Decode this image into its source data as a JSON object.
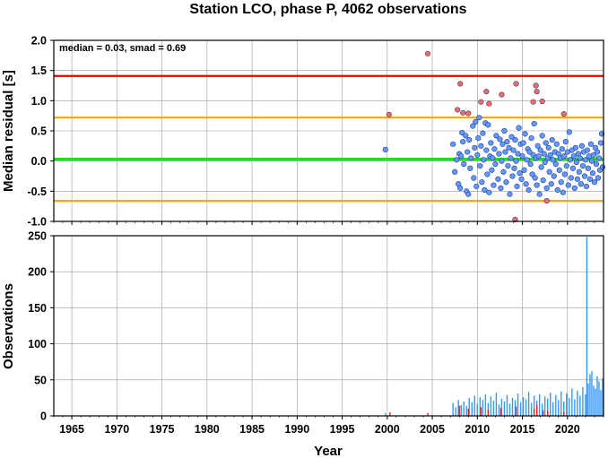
{
  "chart_data": [
    {
      "type": "scatter",
      "title": "Station LCO, phase P, 4062 observations",
      "ylabel": "Median residual [s]",
      "annotation": "median = 0.03, smad = 0.69",
      "xlim": [
        1963,
        2024
      ],
      "ylim": [
        -1.0,
        2.0
      ],
      "yticks": [
        "2.0",
        "1.5",
        "1.0",
        "0.5",
        "0.0",
        "-0.5",
        "-1.0"
      ],
      "reference_lines": [
        {
          "name": "median",
          "value": 0.03,
          "color": "#22dd22"
        },
        {
          "name": "median + smad",
          "value": 0.72,
          "color": "#ffa500"
        },
        {
          "name": "median - smad",
          "value": -0.66,
          "color": "#ffa500"
        },
        {
          "name": "median + 2 smad",
          "value": 1.41,
          "color": "#e00000"
        }
      ],
      "series": [
        {
          "color": "#6699ff",
          "points": [
            [
              1999.8,
              0.19
            ],
            [
              2007.3,
              0.28
            ],
            [
              2007.5,
              -0.18
            ],
            [
              2007.7,
              0.02
            ],
            [
              2007.9,
              -0.38
            ],
            [
              2008.0,
              0.12
            ],
            [
              2008.1,
              -0.45
            ],
            [
              2008.2,
              0.08
            ],
            [
              2008.3,
              0.47
            ],
            [
              2008.4,
              0.32
            ],
            [
              2008.5,
              -0.05
            ],
            [
              2008.7,
              0.42
            ],
            [
              2008.8,
              -0.5
            ],
            [
              2008.9,
              0.15
            ],
            [
              2009.0,
              -0.55
            ],
            [
              2009.1,
              0.35
            ],
            [
              2009.2,
              -0.12
            ],
            [
              2009.3,
              0.05
            ],
            [
              2009.5,
              0.58
            ],
            [
              2009.6,
              -0.28
            ],
            [
              2009.7,
              0.22
            ],
            [
              2009.8,
              0.65
            ],
            [
              2009.9,
              -0.42
            ],
            [
              2010.0,
              0.1
            ],
            [
              2010.1,
              0.38
            ],
            [
              2010.2,
              0.72
            ],
            [
              2010.3,
              -0.08
            ],
            [
              2010.4,
              0.25
            ],
            [
              2010.5,
              -0.35
            ],
            [
              2010.6,
              0.46
            ],
            [
              2010.7,
              0.02
            ],
            [
              2010.8,
              -0.48
            ],
            [
              2010.9,
              0.63
            ],
            [
              2011.0,
              0.18
            ],
            [
              2011.1,
              -0.22
            ],
            [
              2011.2,
              0.6
            ],
            [
              2011.3,
              -0.52
            ],
            [
              2011.4,
              0.08
            ],
            [
              2011.5,
              0.3
            ],
            [
              2011.6,
              -0.15
            ],
            [
              2011.7,
              0.05
            ],
            [
              2011.8,
              -0.4
            ],
            [
              2011.9,
              0.2
            ],
            [
              2012.0,
              -0.05
            ],
            [
              2012.1,
              0.42
            ],
            [
              2012.3,
              -0.3
            ],
            [
              2012.4,
              0.12
            ],
            [
              2012.5,
              0.36
            ],
            [
              2012.6,
              -0.45
            ],
            [
              2012.7,
              0.0
            ],
            [
              2012.8,
              0.28
            ],
            [
              2012.9,
              -0.18
            ],
            [
              2013.0,
              0.5
            ],
            [
              2013.1,
              0.15
            ],
            [
              2013.2,
              -0.35
            ],
            [
              2013.3,
              0.32
            ],
            [
              2013.4,
              -0.08
            ],
            [
              2013.5,
              0.22
            ],
            [
              2013.6,
              -0.55
            ],
            [
              2013.7,
              0.05
            ],
            [
              2013.8,
              0.4
            ],
            [
              2013.9,
              -0.25
            ],
            [
              2014.0,
              0.18
            ],
            [
              2014.1,
              -0.12
            ],
            [
              2014.2,
              0.35
            ],
            [
              2014.3,
              0.0
            ],
            [
              2014.4,
              -0.42
            ],
            [
              2014.5,
              0.12
            ],
            [
              2014.6,
              0.55
            ],
            [
              2014.7,
              -0.2
            ],
            [
              2014.8,
              0.28
            ],
            [
              2014.9,
              -0.3
            ],
            [
              2015.0,
              0.08
            ],
            [
              2015.1,
              0.3
            ],
            [
              2015.2,
              -0.15
            ],
            [
              2015.3,
              0.45
            ],
            [
              2015.4,
              -0.38
            ],
            [
              2015.5,
              0.02
            ],
            [
              2015.6,
              0.2
            ],
            [
              2015.7,
              -0.48
            ],
            [
              2015.8,
              0.15
            ],
            [
              2015.9,
              -0.05
            ],
            [
              2016.0,
              0.38
            ],
            [
              2016.1,
              -0.22
            ],
            [
              2016.2,
              0.1
            ],
            [
              2016.3,
              0.62
            ],
            [
              2016.4,
              -0.28
            ],
            [
              2016.5,
              0.05
            ],
            [
              2016.6,
              -0.4
            ],
            [
              2016.7,
              0.25
            ],
            [
              2016.8,
              0.08
            ],
            [
              2016.9,
              -0.55
            ],
            [
              2017.0,
              0.18
            ],
            [
              2017.1,
              -0.1
            ],
            [
              2017.2,
              0.42
            ],
            [
              2017.3,
              -0.32
            ],
            [
              2017.4,
              0.12
            ],
            [
              2017.5,
              -0.02
            ],
            [
              2017.6,
              0.3
            ],
            [
              2017.7,
              -0.45
            ],
            [
              2017.8,
              0.05
            ],
            [
              2017.9,
              0.22
            ],
            [
              2018.0,
              -0.18
            ],
            [
              2018.1,
              0.1
            ],
            [
              2018.2,
              -0.38
            ],
            [
              2018.3,
              0.35
            ],
            [
              2018.4,
              0.02
            ],
            [
              2018.5,
              -0.25
            ],
            [
              2018.6,
              0.15
            ],
            [
              2018.7,
              -0.05
            ],
            [
              2018.8,
              0.28
            ],
            [
              2018.9,
              -0.48
            ],
            [
              2019.0,
              0.12
            ],
            [
              2019.1,
              -0.15
            ],
            [
              2019.2,
              0.05
            ],
            [
              2019.3,
              -0.35
            ],
            [
              2019.4,
              0.2
            ],
            [
              2019.5,
              -0.52
            ],
            [
              2019.6,
              0.08
            ],
            [
              2019.7,
              -0.22
            ],
            [
              2019.8,
              0.32
            ],
            [
              2019.9,
              -0.08
            ],
            [
              2020.0,
              0.15
            ],
            [
              2020.1,
              -0.4
            ],
            [
              2020.2,
              0.48
            ],
            [
              2020.3,
              0.02
            ],
            [
              2020.4,
              -0.28
            ],
            [
              2020.5,
              0.18
            ],
            [
              2020.6,
              -0.12
            ],
            [
              2020.7,
              0.08
            ],
            [
              2020.8,
              -0.45
            ],
            [
              2020.9,
              0.22
            ],
            [
              2021.0,
              -0.02
            ],
            [
              2021.1,
              -0.3
            ],
            [
              2021.2,
              0.12
            ],
            [
              2021.3,
              -0.18
            ],
            [
              2021.4,
              0.05
            ],
            [
              2021.5,
              -0.38
            ],
            [
              2021.6,
              0.25
            ],
            [
              2021.7,
              -0.08
            ],
            [
              2021.8,
              0.15
            ],
            [
              2021.9,
              -0.25
            ],
            [
              2022.0,
              0.02
            ],
            [
              2022.1,
              -0.42
            ],
            [
              2022.2,
              0.18
            ],
            [
              2022.3,
              -0.12
            ],
            [
              2022.4,
              0.08
            ],
            [
              2022.5,
              -0.3
            ],
            [
              2022.6,
              0.28
            ],
            [
              2022.7,
              0.0
            ],
            [
              2022.8,
              -0.2
            ],
            [
              2022.9,
              0.1
            ],
            [
              2023.0,
              -0.35
            ],
            [
              2023.1,
              0.22
            ],
            [
              2023.2,
              -0.05
            ],
            [
              2023.3,
              0.15
            ],
            [
              2023.4,
              -0.28
            ],
            [
              2023.5,
              0.05
            ],
            [
              2023.6,
              -0.15
            ],
            [
              2023.7,
              0.3
            ],
            [
              2023.8,
              0.45
            ],
            [
              2023.9,
              -0.1
            ]
          ]
        },
        {
          "color": "#ff6b5b",
          "points": [
            [
              2000.2,
              0.77
            ],
            [
              2004.5,
              1.78
            ],
            [
              2007.8,
              0.85
            ],
            [
              2008.1,
              1.28
            ],
            [
              2008.4,
              0.8
            ],
            [
              2009.0,
              0.79
            ],
            [
              2010.4,
              0.98
            ],
            [
              2011.0,
              1.15
            ],
            [
              2011.3,
              0.95
            ],
            [
              2012.7,
              1.1
            ],
            [
              2014.3,
              1.28
            ],
            [
              2014.2,
              -0.97
            ],
            [
              2016.2,
              0.98
            ],
            [
              2016.5,
              1.25
            ],
            [
              2016.6,
              1.15
            ],
            [
              2017.2,
              0.99
            ],
            [
              2017.7,
              -0.66
            ],
            [
              2019.6,
              0.78
            ]
          ]
        }
      ]
    },
    {
      "type": "bar",
      "ylabel": "Observations",
      "xlabel": "Year",
      "xlim": [
        1963,
        2024
      ],
      "ylim": [
        0,
        250
      ],
      "xticks": [
        "1965",
        "1970",
        "1975",
        "1980",
        "1985",
        "1990",
        "1995",
        "2000",
        "2005",
        "2010",
        "2015",
        "2020"
      ],
      "yticks": [
        "0",
        "50",
        "100",
        "150",
        "200",
        "250"
      ],
      "series": [
        {
          "color": "#3399ff",
          "x": [
            1999.8,
            2007.3,
            2007.6,
            2007.9,
            2008.2,
            2008.5,
            2008.8,
            2009.1,
            2009.4,
            2009.7,
            2010.0,
            2010.3,
            2010.6,
            2010.9,
            2011.2,
            2011.5,
            2011.8,
            2012.1,
            2012.4,
            2012.7,
            2013.0,
            2013.3,
            2013.6,
            2013.9,
            2014.2,
            2014.5,
            2014.8,
            2015.1,
            2015.4,
            2015.7,
            2016.0,
            2016.3,
            2016.6,
            2016.9,
            2017.2,
            2017.5,
            2017.8,
            2018.1,
            2018.4,
            2018.7,
            2019.0,
            2019.3,
            2019.6,
            2019.9,
            2020.2,
            2020.5,
            2020.8,
            2021.1,
            2021.4,
            2021.7,
            2022.0,
            2022.15,
            2022.3,
            2022.5,
            2022.7,
            2022.9,
            2023.1,
            2023.3,
            2023.5,
            2023.7,
            2023.9
          ],
          "values": [
            4,
            18,
            12,
            22,
            15,
            20,
            14,
            25,
            19,
            28,
            17,
            26,
            22,
            30,
            18,
            27,
            21,
            32,
            16,
            24,
            20,
            29,
            17,
            25,
            22,
            31,
            19,
            26,
            23,
            33,
            18,
            28,
            21,
            30,
            17,
            27,
            24,
            32,
            19,
            29,
            22,
            34,
            20,
            31,
            25,
            38,
            23,
            35,
            28,
            40,
            30,
            248,
            45,
            58,
            62,
            42,
            38,
            55,
            48,
            36,
            52
          ]
        },
        {
          "color": "#dd2222",
          "x": [
            2000.3,
            2004.5,
            2008.0,
            2009.0,
            2010.4,
            2011.2,
            2012.6,
            2014.3,
            2016.3,
            2016.6,
            2017.3,
            2017.8,
            2019.6
          ],
          "values": [
            5,
            4,
            14,
            10,
            12,
            9,
            11,
            13,
            10,
            15,
            8,
            7,
            6
          ]
        }
      ]
    }
  ]
}
